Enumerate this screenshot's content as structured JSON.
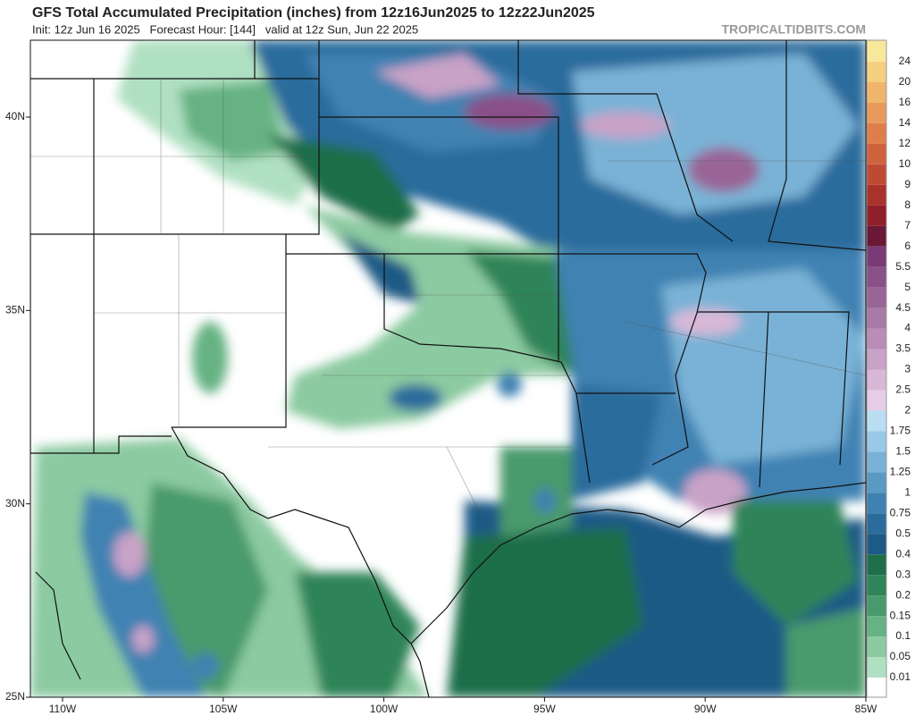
{
  "header": {
    "title": "GFS Total Accumulated Precipitation (inches) from 12z16Jun2025 to 12z22Jun2025",
    "subtitle": "Init: 12z Jun 16 2025   Forecast Hour: [144]   valid at 12z Sun, Jun 22 2025",
    "watermark": "TROPICALTIDBITS.COM"
  },
  "map": {
    "lat_labels": [
      {
        "value": 40,
        "label": "40N"
      },
      {
        "value": 35,
        "label": "35N"
      },
      {
        "value": 30,
        "label": "30N"
      },
      {
        "value": 25,
        "label": "25N"
      }
    ],
    "lon_labels": [
      {
        "value": 110,
        "label": "110W"
      },
      {
        "value": 105,
        "label": "105W"
      },
      {
        "value": 100,
        "label": "100W"
      },
      {
        "value": 95,
        "label": "95W"
      },
      {
        "value": 90,
        "label": "90W"
      },
      {
        "value": 85,
        "label": "85W"
      }
    ]
  },
  "colorbar": {
    "labels": [
      "24",
      "20",
      "16",
      "14",
      "12",
      "10",
      "9",
      "8",
      "7",
      "6",
      "5.5",
      "5",
      "4.5",
      "4",
      "3.5",
      "3",
      "2.5",
      "2",
      "1.75",
      "1.5",
      "1.25",
      "1",
      "0.75",
      "0.5",
      "0.4",
      "0.3",
      "0.2",
      "0.15",
      "0.1",
      "0.05",
      "0.01"
    ],
    "colors": [
      "#f8e89c",
      "#f4cf80",
      "#efb56d",
      "#e89a5c",
      "#de7e4c",
      "#cf633e",
      "#bf4a34",
      "#aa322c",
      "#8f1f2a",
      "#6b1838",
      "#7a3a76",
      "#8a5088",
      "#996597",
      "#a979a7",
      "#b98db7",
      "#c9a2c7",
      "#d8b8d6",
      "#e6cde5",
      "#b9def2",
      "#98c9e6",
      "#79b2d6",
      "#5a9ac4",
      "#3f82b2",
      "#2b6c9c",
      "#1e5a86",
      "#1f6e4a",
      "#2f8459",
      "#489a6c",
      "#66b283",
      "#8ccaa1",
      "#b0e0c2",
      "#ffffff"
    ]
  }
}
